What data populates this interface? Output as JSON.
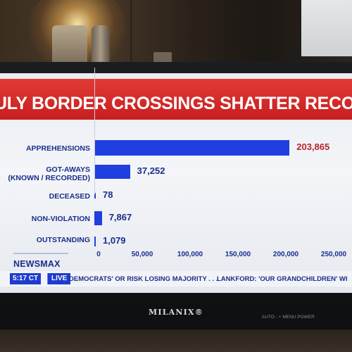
{
  "headline": "ULY BORDER CROSSINGS SHATTER RECORD",
  "chart_data": {
    "type": "bar",
    "orientation": "horizontal",
    "categories": [
      "APPREHENSIONS",
      "GOT-AWAYS\n(KNOWN / RECORDED)",
      "DECEASED",
      "NON-VIOLATION",
      "OUTSTANDING"
    ],
    "values": [
      203865,
      37252,
      78,
      7867,
      1079
    ],
    "value_labels": [
      "203,865",
      "37,252",
      "78",
      "7,867",
      "1,079"
    ],
    "xlim": [
      0,
      250000
    ],
    "x_ticks": [
      "0",
      "50,000",
      "100,000",
      "150,000",
      "200,000",
      "250,000"
    ],
    "grid": false,
    "colors": {
      "bar": "#1f3fe0",
      "top_value": "#b8252b"
    }
  },
  "branding": {
    "network": "NEWSMAX"
  },
  "ticker": {
    "time": "5:17 CT",
    "live_label": "LIVE",
    "headline_1": "DEMOCRATS' OR RISK LOSING MAJORITY . . .",
    "headline_2": "LANKFORD: 'OUR GRANDCHILDREN' WI"
  },
  "tv": {
    "brand": "MILANIX",
    "controls": "AUTO     -     +     MENU  POWER"
  }
}
